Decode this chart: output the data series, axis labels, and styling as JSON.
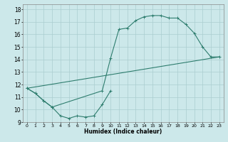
{
  "xlabel": "Humidex (Indice chaleur)",
  "xlim": [
    -0.5,
    23.5
  ],
  "ylim": [
    9,
    18.4
  ],
  "yticks": [
    9,
    10,
    11,
    12,
    13,
    14,
    15,
    16,
    17,
    18
  ],
  "xticks": [
    0,
    1,
    2,
    3,
    4,
    5,
    6,
    7,
    8,
    9,
    10,
    11,
    12,
    13,
    14,
    15,
    16,
    17,
    18,
    19,
    20,
    21,
    22,
    23
  ],
  "bg_color": "#cce8ea",
  "grid_color": "#aacdd0",
  "line_color": "#2e7d6e",
  "line1_x": [
    0,
    1,
    2,
    3,
    4,
    5,
    6,
    7,
    8,
    9,
    10
  ],
  "line1_y": [
    11.7,
    11.3,
    10.7,
    10.2,
    9.5,
    9.3,
    9.5,
    9.4,
    9.5,
    10.4,
    11.5
  ],
  "line2_x": [
    0,
    1,
    2,
    3,
    9,
    10,
    11,
    12,
    13,
    14,
    15,
    16,
    17,
    18,
    19,
    20,
    21,
    22,
    23
  ],
  "line2_y": [
    11.7,
    11.3,
    10.7,
    10.2,
    11.5,
    14.1,
    16.4,
    16.5,
    17.1,
    17.4,
    17.5,
    17.5,
    17.3,
    17.3,
    16.8,
    16.1,
    15.0,
    14.2,
    14.2
  ],
  "line3_x": [
    0,
    23
  ],
  "line3_y": [
    11.7,
    14.2
  ]
}
